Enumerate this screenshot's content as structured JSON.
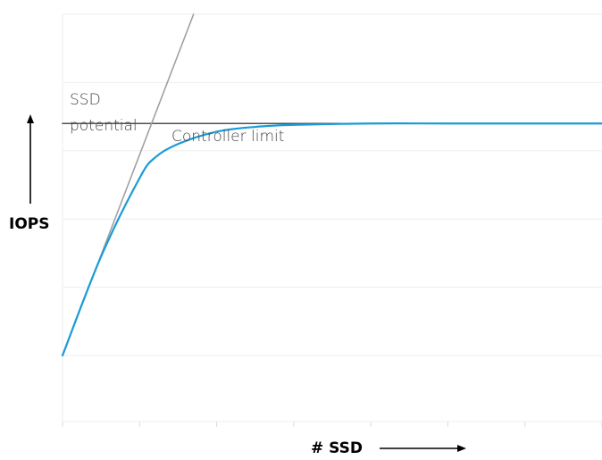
{
  "chart_data": {
    "type": "line",
    "xlabel": "# SSD",
    "ylabel": "IOPS",
    "x_ticks": 7,
    "y_gridlines": 5,
    "grid": true,
    "xlim": [
      0,
      7
    ],
    "ylim": [
      0,
      5
    ],
    "series": [
      {
        "name": "",
        "color": "#1a9bd7",
        "style": "solid",
        "x": [
          0,
          0.5,
          1.0,
          1.2,
          1.5,
          2.0,
          2.5,
          3.0,
          4.0,
          5.0,
          6.0,
          7.0
        ],
        "y": [
          0,
          1.45,
          2.6,
          2.9,
          3.1,
          3.28,
          3.35,
          3.38,
          3.4,
          3.4,
          3.4,
          3.4
        ]
      },
      {
        "name": "",
        "color": "#a0a0a0",
        "style": "solid",
        "x": [
          0,
          1.7
        ],
        "y": [
          0,
          5.0
        ]
      },
      {
        "name": "",
        "color": "#505050",
        "style": "solid",
        "x": [
          0,
          7.0
        ],
        "y": [
          3.4,
          3.4
        ]
      }
    ],
    "annotations": [
      {
        "lines": [
          "SSD",
          "potential"
        ]
      },
      {
        "lines": [
          "Controller limit"
        ]
      }
    ]
  }
}
